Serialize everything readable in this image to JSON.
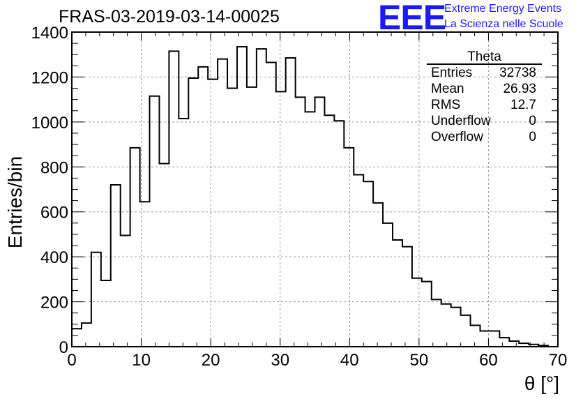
{
  "header": {
    "title": "FRAS-03-2019-03-14-00025",
    "logo_text": "EEE",
    "brand_line1": "Extreme Energy Events",
    "brand_line2": "La Scienza nelle Scuole"
  },
  "stats": {
    "name": "Theta",
    "rows": [
      {
        "label": "Entries",
        "value": "32738"
      },
      {
        "label": "Mean",
        "value": "26.93"
      },
      {
        "label": "RMS",
        "value": "12.7"
      },
      {
        "label": "Underflow",
        "value": "0"
      },
      {
        "label": "Overflow",
        "value": "0"
      }
    ]
  },
  "chart_data": {
    "type": "bar",
    "histogram": true,
    "title": "FRAS-03-2019-03-14-00025",
    "xlabel": "θ [°]",
    "ylabel": "Entries/bin",
    "xlim": [
      0,
      70
    ],
    "ylim": [
      0,
      1400
    ],
    "bin_width": 1.4,
    "x_ticks": [
      0,
      10,
      20,
      30,
      40,
      50,
      60,
      70
    ],
    "y_ticks": [
      0,
      200,
      400,
      600,
      800,
      1000,
      1200,
      1400
    ],
    "grid": true,
    "values": [
      80,
      105,
      420,
      295,
      720,
      495,
      885,
      645,
      1115,
      815,
      1315,
      1015,
      1195,
      1245,
      1190,
      1280,
      1150,
      1335,
      1155,
      1325,
      1265,
      1135,
      1285,
      1110,
      1045,
      1110,
      1030,
      1005,
      885,
      765,
      735,
      640,
      550,
      475,
      445,
      305,
      290,
      210,
      190,
      175,
      140,
      95,
      70,
      70,
      40,
      25,
      15,
      10,
      5,
      0
    ]
  },
  "colors": {
    "line": "#000000",
    "grid": "#999999",
    "brand": "#1a1aff"
  }
}
